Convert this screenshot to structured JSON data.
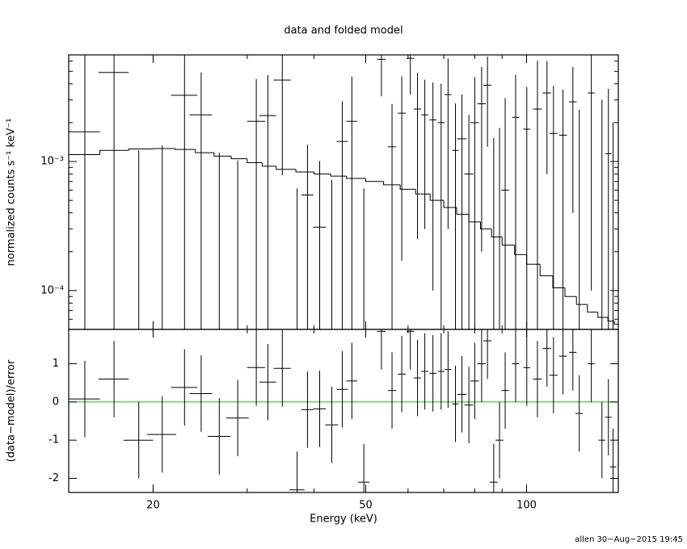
{
  "chart_data": [
    {
      "type": "spectrum",
      "title": "data and folded model",
      "ylabel": "normalized counts s⁻¹ keV⁻¹",
      "xlim": [
        13.9,
        148.5
      ],
      "log_x": true,
      "ylim": [
        5e-05,
        0.0067
      ],
      "log_y": true,
      "yticks": [
        {
          "value": 0.001,
          "label": "10⁻³"
        },
        {
          "value": 0.0001,
          "label": "10⁻⁴"
        }
      ],
      "yminorticks": [
        5e-05,
        6e-05,
        7e-05,
        8e-05,
        9e-05,
        0.0002,
        0.0003,
        0.0004,
        0.0005,
        0.0006,
        0.0007,
        0.0008,
        0.0009,
        0.002,
        0.003,
        0.004,
        0.005,
        0.006
      ],
      "color": "#000000",
      "x": [
        14.9,
        16.9,
        18.8,
        20.8,
        22.9,
        24.6,
        26.6,
        28.8,
        31.2,
        32.8,
        34.9,
        37.2,
        38.9,
        41.0,
        43.2,
        45.2,
        47.1,
        49.6,
        53.5,
        56.0,
        58.4,
        60.6,
        62.5,
        64.5,
        66.8,
        69.2,
        71.3,
        73.6,
        75.7,
        78.0,
        80.0,
        82.4,
        84.5,
        86.8,
        89.0,
        91.2,
        95.4,
        100.1,
        104.8,
        109.2,
        112.3,
        117.0,
        122.1,
        125.5,
        132.2,
        138.4,
        142.3,
        145.2
      ],
      "xerr": [
        1.0,
        1.1,
        1.2,
        1.3,
        1.3,
        1.2,
        1.3,
        1.4,
        1.2,
        1.2,
        1.3,
        1.2,
        1.0,
        1.1,
        1.2,
        1.1,
        1.1,
        1.2,
        1.0,
        1.0,
        1.0,
        1.0,
        1.0,
        1.0,
        1.0,
        1.0,
        1.0,
        1.0,
        1.5,
        1.5,
        1.5,
        1.5,
        1.5,
        1.5,
        1.5,
        1.5,
        1.5,
        1.5,
        2.0,
        2.0,
        2.0,
        2.0,
        2.0,
        2.0,
        2.0,
        2.0,
        2.0,
        2.0
      ],
      "values": [
        0.0017,
        0.0049,
        2e-05,
        3e-05,
        0.00326,
        0.0023,
        2e-05,
        2e-05,
        0.00205,
        0.00227,
        0.00428,
        2e-05,
        0.00055,
        0.00031,
        2e-05,
        0.00143,
        0.00205,
        2e-05,
        0.0062,
        0.0013,
        0.00237,
        0.0063,
        0.00255,
        0.0023,
        0.0021,
        0.002,
        0.0033,
        0.00122,
        0.0015,
        0.0008,
        0.002,
        0.0028,
        0.0039,
        2e-05,
        2e-05,
        0.0006,
        0.0022,
        0.00178,
        0.00255,
        0.0034,
        0.00165,
        0.0016,
        0.0029,
        2e-05,
        0.0034,
        2e-05,
        0.00115,
        2e-05
      ],
      "yerr": [
        0.0055,
        0.005,
        0.0012,
        0.0013,
        0.0038,
        0.0026,
        0.00115,
        0.001,
        0.0023,
        0.0024,
        0.0035,
        0.0006,
        0.0008,
        0.0007,
        0.0007,
        0.0015,
        0.0025,
        0.0006,
        0.003,
        0.0015,
        0.0022,
        0.003,
        0.0023,
        0.002,
        0.002,
        0.002,
        0.003,
        0.0016,
        0.0018,
        0.0015,
        0.0025,
        0.0026,
        0.0026,
        0.0015,
        0.0018,
        0.0025,
        0.0025,
        0.002,
        0.0035,
        0.0026,
        0.0022,
        0.002,
        0.0025,
        0.0025,
        0.0033,
        0.003,
        0.0025,
        0.002
      ],
      "model": {
        "bins": [
          13.9,
          15.9,
          18,
          20,
          22,
          24,
          26,
          28,
          30,
          32,
          34,
          37,
          40,
          43,
          46,
          50,
          54,
          58,
          62,
          66,
          70,
          74,
          78,
          82,
          86,
          90,
          95,
          100,
          106,
          112,
          118,
          124,
          130,
          136,
          142,
          146,
          148.5
        ],
        "values": [
          0.00113,
          0.00122,
          0.00125,
          0.00126,
          0.00124,
          0.00117,
          0.0011,
          0.00105,
          0.00098,
          0.00092,
          0.00087,
          0.00083,
          0.0008,
          0.00077,
          0.00074,
          0.0007,
          0.00066,
          0.00061,
          0.00056,
          0.0005,
          0.00044,
          0.00039,
          0.00034,
          0.0003,
          0.00026,
          0.000225,
          0.00019,
          0.00016,
          0.00013,
          0.000105,
          9e-05,
          7.8e-05,
          6.8e-05,
          6.2e-05,
          5.8e-05,
          5.5e-05
        ],
        "color": "#000000"
      }
    },
    {
      "type": "residual",
      "xlabel": "Energy (keV)",
      "ylabel": "(data−model)/error",
      "xlim": [
        13.9,
        148.5
      ],
      "log_x": true,
      "xticks": [
        20,
        50,
        100
      ],
      "xminorticks": [
        20,
        30,
        40,
        50,
        60,
        70,
        80,
        90,
        100
      ],
      "ylim": [
        -2.37,
        1.9
      ],
      "yticks": [
        -2,
        -1,
        0,
        1
      ],
      "zero_line": 0,
      "zero_color": "#00cc00",
      "color": "#000000",
      "x": [
        14.9,
        16.9,
        18.8,
        20.8,
        22.9,
        24.6,
        26.6,
        28.8,
        31.2,
        32.8,
        34.9,
        37.2,
        38.9,
        41.0,
        43.2,
        45.2,
        47.1,
        49.6,
        53.5,
        56.0,
        58.4,
        60.6,
        62.5,
        64.5,
        66.8,
        69.2,
        71.3,
        73.6,
        75.7,
        78.0,
        80.0,
        82.4,
        84.5,
        86.8,
        89.0,
        91.2,
        95.4,
        100.1,
        104.8,
        109.2,
        112.3,
        117.0,
        122.1,
        125.5,
        132.2,
        138.4,
        142.3,
        145.2
      ],
      "xerr": [
        1.0,
        1.1,
        1.2,
        1.3,
        1.3,
        1.2,
        1.3,
        1.4,
        1.2,
        1.2,
        1.3,
        1.2,
        1.0,
        1.1,
        1.2,
        1.1,
        1.1,
        1.2,
        1.0,
        1.0,
        1.0,
        1.0,
        1.0,
        1.0,
        1.0,
        1.0,
        1.0,
        1.0,
        1.5,
        1.5,
        1.5,
        1.5,
        1.5,
        1.5,
        1.5,
        1.5,
        1.5,
        1.5,
        2.0,
        2.0,
        2.0,
        2.0,
        2.0,
        2.0,
        2.0,
        2.0,
        2.0,
        2.0
      ],
      "values": [
        0.08,
        0.6,
        -1.0,
        -0.85,
        0.38,
        0.22,
        -0.9,
        -0.42,
        0.9,
        0.52,
        0.88,
        -2.3,
        -0.2,
        -0.18,
        -0.6,
        0.33,
        0.55,
        -2.1,
        1.85,
        0.3,
        0.73,
        1.85,
        0.63,
        0.8,
        0.75,
        0.8,
        0.85,
        -0.05,
        0.2,
        -0.08,
        0.55,
        1.0,
        1.6,
        -2.1,
        -1.0,
        0.3,
        1.0,
        0.9,
        0.6,
        1.4,
        0.7,
        1.2,
        1.3,
        -0.3,
        1.0,
        -1.0,
        -0.4,
        -1.7
      ],
      "yerr": [
        1,
        1,
        1,
        1,
        1,
        1,
        1,
        1,
        1,
        1,
        1,
        1,
        1,
        1,
        1,
        1,
        1,
        1,
        1,
        1,
        1,
        1,
        1,
        1,
        1,
        1,
        1,
        1,
        1,
        1,
        1,
        1,
        1,
        1,
        1,
        1,
        1,
        1,
        1,
        1,
        1,
        1,
        1,
        1,
        1,
        1,
        1,
        1
      ]
    }
  ],
  "footer": "allen 30−Aug−2015 19:45"
}
